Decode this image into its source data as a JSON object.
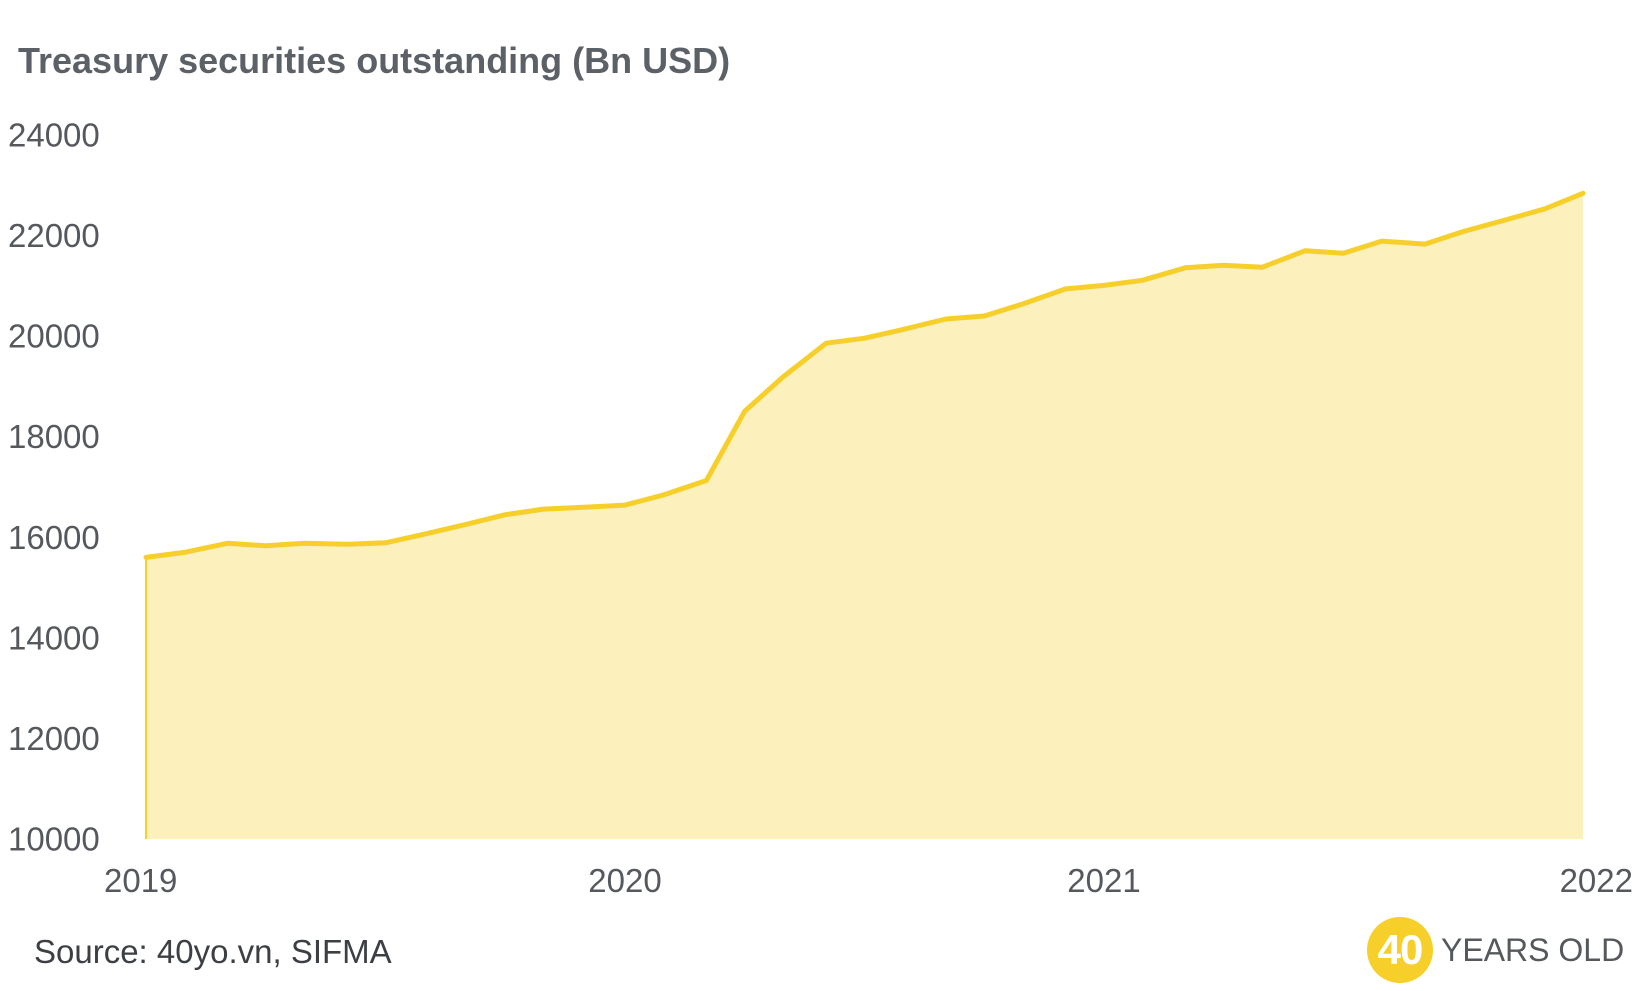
{
  "chart_data": {
    "type": "area",
    "title": "Treasury securities outstanding (Bn USD)",
    "xlabel": "",
    "ylabel": "",
    "ylim": [
      10000,
      24000
    ],
    "xlim": [
      2019.0,
      2022.0
    ],
    "y_ticks": [
      "24000",
      "22000",
      "20000",
      "18000",
      "16000",
      "14000",
      "12000",
      "10000"
    ],
    "x_ticks": [
      "2019",
      "2020",
      "2021",
      "2022"
    ],
    "grid": false,
    "legend": "none",
    "colors": {
      "line": "#f6cf2b",
      "fill": "#fcf0bc"
    },
    "x": [
      2019.0,
      2019.08,
      2019.17,
      2019.25,
      2019.33,
      2019.42,
      2019.5,
      2019.58,
      2019.67,
      2019.75,
      2019.83,
      2019.92,
      2020.0,
      2020.08,
      2020.17,
      2020.25,
      2020.33,
      2020.42,
      2020.5,
      2020.58,
      2020.67,
      2020.75,
      2020.83,
      2020.92,
      2021.0,
      2021.08,
      2021.17,
      2021.25,
      2021.33,
      2021.42,
      2021.5,
      2021.58,
      2021.67,
      2021.75,
      2021.83,
      2021.92,
      2022.0
    ],
    "series": [
      {
        "values": [
          15600,
          15700,
          15880,
          15830,
          15880,
          15860,
          15890,
          16060,
          16260,
          16450,
          16560,
          16600,
          16640,
          16840,
          17130,
          18510,
          19190,
          19860,
          19960,
          20130,
          20340,
          20400,
          20640,
          20940,
          21010,
          21110,
          21360,
          21410,
          21370,
          21700,
          21650,
          21890,
          21830,
          22080,
          22290,
          22530,
          22840
        ]
      }
    ]
  },
  "source": "Source: 40yo.vn, SIFMA",
  "brand": {
    "number": "40",
    "text": "YEARS OLD",
    "color": "#f6cf2b"
  }
}
